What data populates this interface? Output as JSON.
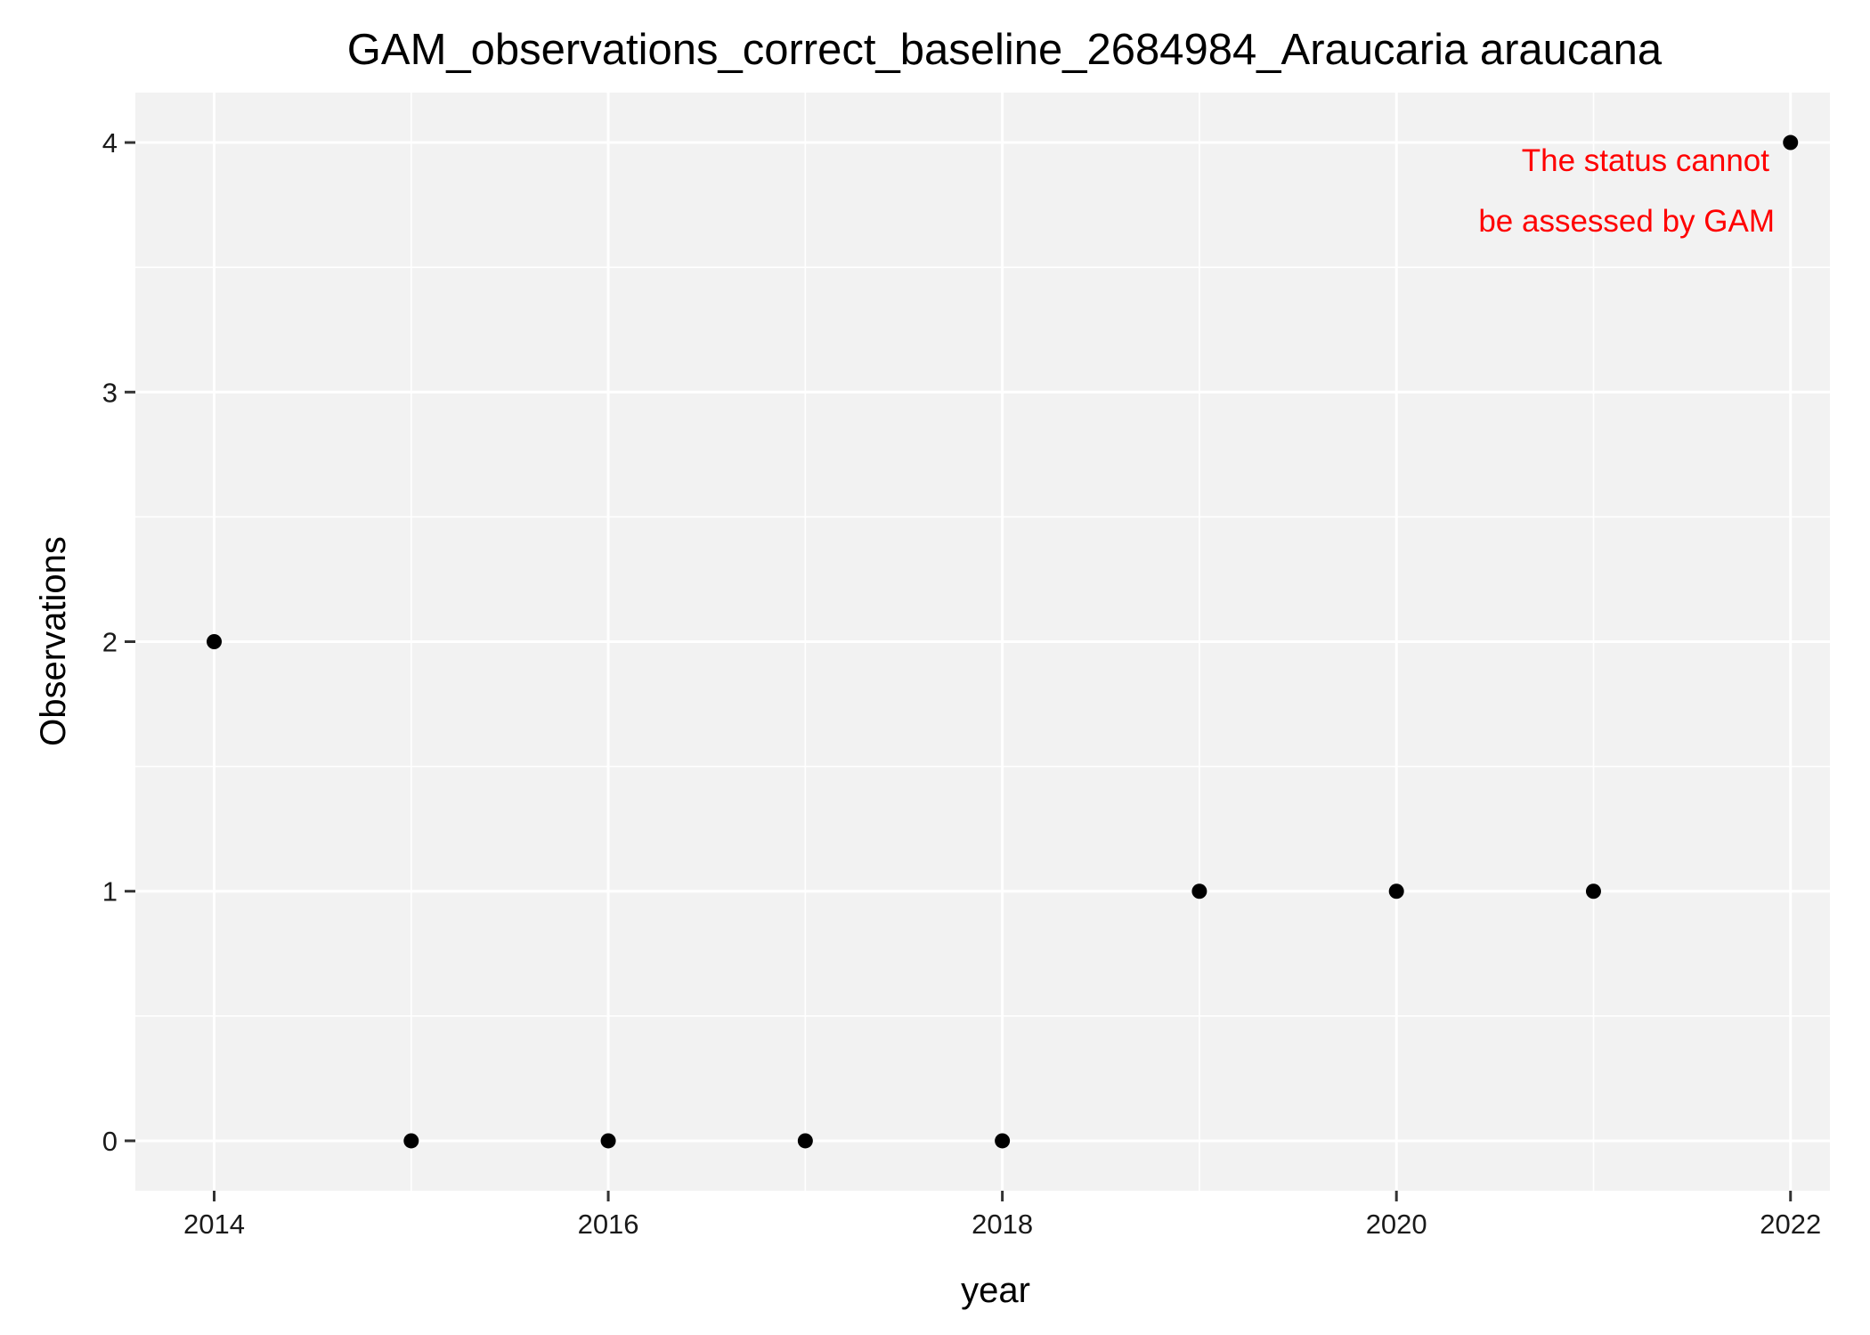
{
  "chart_data": {
    "type": "scatter",
    "title": "GAM_observations_correct_baseline_2684984_Araucaria araucana",
    "xlabel": "year",
    "ylabel": "Observations",
    "x": [
      2014,
      2015,
      2016,
      2017,
      2018,
      2019,
      2020,
      2021,
      2022
    ],
    "y": [
      2,
      0,
      0,
      0,
      0,
      1,
      1,
      1,
      4
    ],
    "xlim": [
      2013.6,
      2022.2
    ],
    "ylim": [
      -0.2,
      4.2
    ],
    "x_ticks": [
      "2014",
      "2016",
      "2018",
      "2020",
      "2022"
    ],
    "y_ticks": [
      "0",
      "1",
      "2",
      "3",
      "4"
    ],
    "annotation": [
      "The status cannot",
      "be assessed by GAM"
    ],
    "grid": true,
    "legend": "none",
    "colors": {
      "panel_background": "#f2f2f2",
      "gridline": "#ffffff",
      "point": "#000000",
      "annotation": "#ff0000"
    }
  }
}
